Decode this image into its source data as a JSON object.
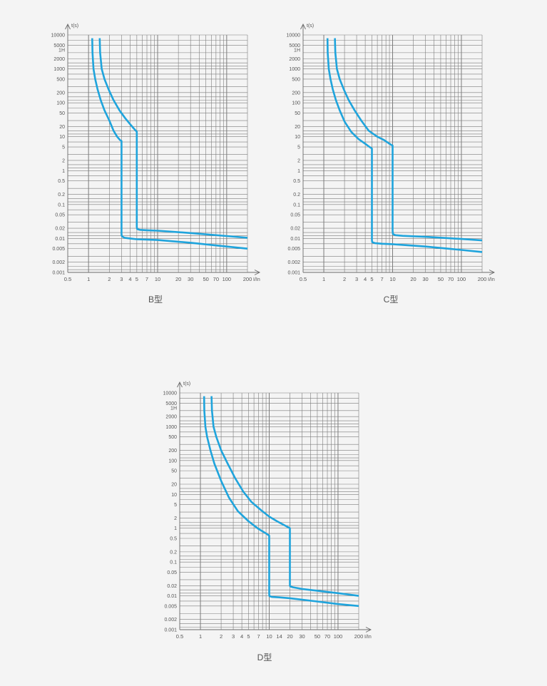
{
  "chart_data": [
    {
      "type": "line",
      "caption": "B型",
      "ylabel": "t(s)",
      "xlabel": "I/In",
      "x_scale": "log",
      "y_scale": "log",
      "xlim": [
        0.5,
        200
      ],
      "ylim": [
        0.001,
        10000
      ],
      "grid": true,
      "x_ticks": [
        "0.5",
        "1",
        "2",
        "3",
        "4",
        "5",
        "7",
        "10",
        "20",
        "30",
        "50",
        "70",
        "100",
        "200"
      ],
      "y_ticks": [
        {
          "value": 10000,
          "label": "10000"
        },
        {
          "value": 5000,
          "label": "5000"
        },
        {
          "value": 3600,
          "label": "1H"
        },
        {
          "value": 2000,
          "label": "2000"
        },
        {
          "value": 1000,
          "label": "1000"
        },
        {
          "value": 500,
          "label": "500"
        },
        {
          "value": 200,
          "label": "200"
        },
        {
          "value": 100,
          "label": "100"
        },
        {
          "value": 50,
          "label": "50"
        },
        {
          "value": 20,
          "label": "20"
        },
        {
          "value": 10,
          "label": "10"
        },
        {
          "value": 5,
          "label": "5"
        },
        {
          "value": 2,
          "label": "2"
        },
        {
          "value": 1,
          "label": "1"
        },
        {
          "value": 0.5,
          "label": "0.5"
        },
        {
          "value": 0.2,
          "label": "0.2"
        },
        {
          "value": 0.1,
          "label": "0.1"
        },
        {
          "value": 0.05,
          "label": "0.05"
        },
        {
          "value": 0.02,
          "label": "0.02"
        },
        {
          "value": 0.01,
          "label": "0.01"
        },
        {
          "value": 0.005,
          "label": "0.005"
        },
        {
          "value": 0.002,
          "label": "0.002"
        },
        {
          "value": 0.001,
          "label": "0.001"
        }
      ],
      "series": [
        {
          "x": [
            1.13,
            1.14,
            1.18,
            1.25,
            1.35,
            1.5,
            1.7,
            2.0,
            2.3,
            2.6,
            2.85,
            3.0,
            3.0,
            3.0,
            3.05,
            3.3,
            4.0,
            5.0,
            10,
            30,
            100,
            200
          ],
          "y": [
            8000,
            3000,
            1000,
            500,
            250,
            120,
            60,
            30,
            15,
            10,
            8,
            7.5,
            1,
            0.013,
            0.0115,
            0.0105,
            0.01,
            0.0095,
            0.009,
            0.0075,
            0.0058,
            0.005
          ]
        },
        {
          "x": [
            1.45,
            1.47,
            1.55,
            1.7,
            1.95,
            2.3,
            2.8,
            3.4,
            4.1,
            4.7,
            5.0,
            5.0,
            5.0,
            5.05,
            5.5,
            7,
            10,
            30,
            100,
            200
          ],
          "y": [
            8000,
            3000,
            1000,
            500,
            250,
            120,
            60,
            35,
            22,
            16,
            14,
            1,
            0.022,
            0.019,
            0.018,
            0.0175,
            0.017,
            0.0145,
            0.0118,
            0.0105
          ]
        }
      ]
    },
    {
      "type": "line",
      "caption": "C型",
      "ylabel": "t(s)",
      "xlabel": "I/In",
      "x_scale": "log",
      "y_scale": "log",
      "xlim": [
        0.5,
        200
      ],
      "ylim": [
        0.001,
        10000
      ],
      "grid": true,
      "x_ticks": [
        "0.5",
        "1",
        "2",
        "3",
        "4",
        "5",
        "7",
        "10",
        "20",
        "30",
        "50",
        "70",
        "100",
        "200"
      ],
      "y_ticks": [
        {
          "value": 10000,
          "label": "10000"
        },
        {
          "value": 5000,
          "label": "5000"
        },
        {
          "value": 3600,
          "label": "1H"
        },
        {
          "value": 2000,
          "label": "2000"
        },
        {
          "value": 1000,
          "label": "1000"
        },
        {
          "value": 500,
          "label": "500"
        },
        {
          "value": 200,
          "label": "200"
        },
        {
          "value": 100,
          "label": "100"
        },
        {
          "value": 50,
          "label": "50"
        },
        {
          "value": 20,
          "label": "20"
        },
        {
          "value": 10,
          "label": "10"
        },
        {
          "value": 5,
          "label": "5"
        },
        {
          "value": 2,
          "label": "2"
        },
        {
          "value": 1,
          "label": "1"
        },
        {
          "value": 0.5,
          "label": "0.5"
        },
        {
          "value": 0.2,
          "label": "0.2"
        },
        {
          "value": 0.1,
          "label": "0.1"
        },
        {
          "value": 0.05,
          "label": "0.05"
        },
        {
          "value": 0.02,
          "label": "0.02"
        },
        {
          "value": 0.01,
          "label": "0.01"
        },
        {
          "value": 0.005,
          "label": "0.005"
        },
        {
          "value": 0.002,
          "label": "0.002"
        },
        {
          "value": 0.001,
          "label": "0.001"
        }
      ],
      "series": [
        {
          "x": [
            1.13,
            1.14,
            1.18,
            1.25,
            1.35,
            1.5,
            1.7,
            2.0,
            2.5,
            3.2,
            4.0,
            4.6,
            5.0,
            5.0,
            5.0,
            5.05,
            5.5,
            7,
            10,
            30,
            100,
            200
          ],
          "y": [
            8000,
            3000,
            1000,
            500,
            250,
            120,
            60,
            28,
            14,
            8.5,
            6.2,
            5.0,
            4.5,
            1,
            0.009,
            0.0078,
            0.0073,
            0.007,
            0.0068,
            0.0058,
            0.0046,
            0.004
          ]
        },
        {
          "x": [
            1.45,
            1.47,
            1.55,
            1.7,
            1.95,
            2.3,
            2.8,
            3.5,
            4.5,
            6.0,
            7.5,
            8.7,
            9.5,
            10,
            10,
            10,
            10.1,
            11,
            14,
            30,
            100,
            200
          ],
          "y": [
            8000,
            3000,
            1000,
            500,
            250,
            120,
            60,
            30,
            15,
            10,
            8,
            6.5,
            5.8,
            5.5,
            1,
            0.017,
            0.0135,
            0.0125,
            0.012,
            0.0112,
            0.0097,
            0.0088
          ]
        }
      ]
    },
    {
      "type": "line",
      "caption": "D型",
      "ylabel": "t(s)",
      "xlabel": "I/In",
      "x_scale": "log",
      "y_scale": "log",
      "xlim": [
        0.5,
        200
      ],
      "ylim": [
        0.001,
        10000
      ],
      "grid": true,
      "x_ticks": [
        "0.5",
        "1",
        "2",
        "3",
        "4",
        "5",
        "7",
        "10",
        "14",
        "20",
        "30",
        "50",
        "70",
        "100",
        "200"
      ],
      "y_ticks": [
        {
          "value": 10000,
          "label": "10000"
        },
        {
          "value": 5000,
          "label": "5000"
        },
        {
          "value": 3600,
          "label": "1H"
        },
        {
          "value": 2000,
          "label": "2000"
        },
        {
          "value": 1000,
          "label": "1000"
        },
        {
          "value": 500,
          "label": "500"
        },
        {
          "value": 200,
          "label": "200"
        },
        {
          "value": 100,
          "label": "100"
        },
        {
          "value": 50,
          "label": "50"
        },
        {
          "value": 20,
          "label": "20"
        },
        {
          "value": 10,
          "label": "10"
        },
        {
          "value": 5,
          "label": "5"
        },
        {
          "value": 2,
          "label": "2"
        },
        {
          "value": 1,
          "label": "1"
        },
        {
          "value": 0.5,
          "label": "0.5"
        },
        {
          "value": 0.2,
          "label": "0.2"
        },
        {
          "value": 0.1,
          "label": "0.1"
        },
        {
          "value": 0.05,
          "label": "0.05"
        },
        {
          "value": 0.02,
          "label": "0.02"
        },
        {
          "value": 0.01,
          "label": "0.01"
        },
        {
          "value": 0.005,
          "label": "0.005"
        },
        {
          "value": 0.002,
          "label": "0.002"
        },
        {
          "value": 0.001,
          "label": "0.001"
        }
      ],
      "series": [
        {
          "x": [
            1.13,
            1.14,
            1.18,
            1.25,
            1.4,
            1.6,
            2.0,
            2.6,
            3.5,
            5.0,
            7.0,
            9.0,
            10,
            10,
            10,
            10.1,
            11,
            14,
            20,
            50,
            100,
            200
          ],
          "y": [
            8000,
            3000,
            1000,
            500,
            200,
            80,
            25,
            8,
            3.2,
            1.6,
            0.95,
            0.7,
            0.6,
            0.5,
            0.011,
            0.0098,
            0.0093,
            0.009,
            0.0085,
            0.0068,
            0.0057,
            0.005
          ]
        },
        {
          "x": [
            1.45,
            1.47,
            1.55,
            1.7,
            2.0,
            2.5,
            3.2,
            4.2,
            5.5,
            7.5,
            10,
            13,
            17,
            20,
            20,
            20,
            20.2,
            22,
            30,
            100,
            200
          ],
          "y": [
            8000,
            3000,
            1000,
            500,
            200,
            80,
            30,
            12,
            6,
            3.5,
            2.2,
            1.6,
            1.2,
            1.0,
            0.5,
            0.02,
            0.019,
            0.018,
            0.016,
            0.012,
            0.01
          ]
        }
      ]
    }
  ],
  "colors": {
    "curve": "#1fa4dc",
    "grid": "#7c7c7c",
    "axis": "#6a6a6a",
    "text": "#555555",
    "background": "#f4f4f4"
  }
}
